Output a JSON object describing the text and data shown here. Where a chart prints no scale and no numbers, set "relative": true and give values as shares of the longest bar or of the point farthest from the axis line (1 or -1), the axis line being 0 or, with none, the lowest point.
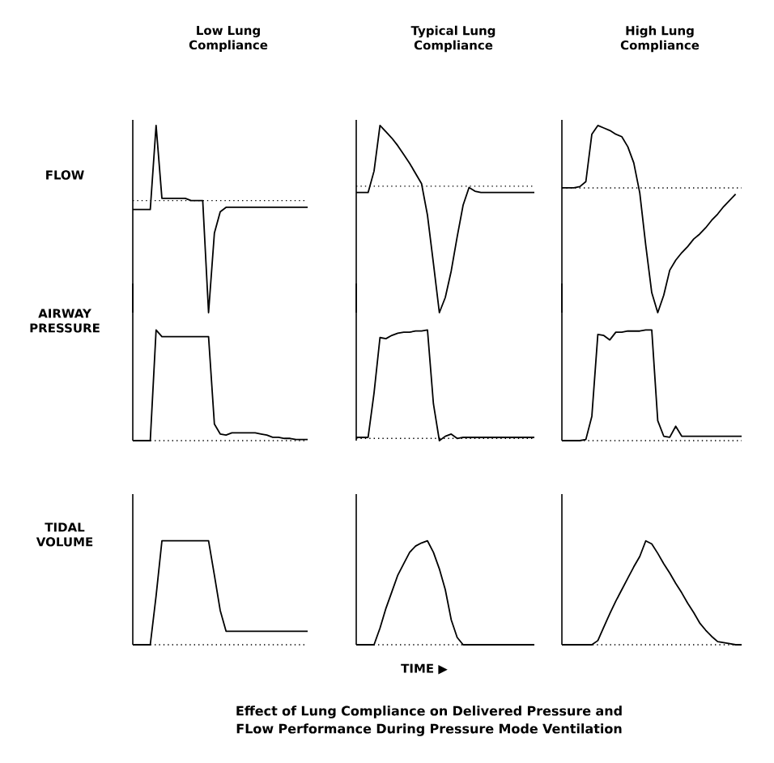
{
  "chart_data": [
    {
      "type": "line",
      "relative": true,
      "title": "Low Lung Compliance",
      "ylabel": "FLOW",
      "ref_lines": [
        {
          "axis": "y",
          "value": 0,
          "line_style": "dotted"
        }
      ],
      "categories": [
        null,
        null,
        null,
        null,
        null,
        null,
        null,
        null,
        null,
        null,
        null,
        null,
        null,
        null,
        null,
        null,
        null,
        null,
        null,
        null,
        null,
        null,
        null,
        null,
        null,
        null,
        null,
        null,
        null,
        null,
        null
      ],
      "series": [
        {
          "color": "#000000",
          "values": [
            -0.08,
            -0.08,
            -0.08,
            -0.08,
            0.67,
            0.02,
            0.02,
            0.02,
            0.02,
            0.02,
            0,
            0,
            0,
            -1,
            -0.29,
            -0.1,
            -0.06,
            -0.06,
            -0.06,
            -0.06,
            -0.06,
            -0.06,
            -0.06,
            -0.06,
            -0.06,
            -0.06,
            -0.06,
            -0.06,
            -0.06,
            -0.06,
            -0.06
          ]
        }
      ]
    },
    {
      "type": "line",
      "relative": true,
      "title": "Typical Lung Compliance",
      "ref_lines": [
        {
          "axis": "y",
          "value": 0,
          "line_style": "dotted"
        }
      ],
      "categories": [
        null,
        null,
        null,
        null,
        null,
        null,
        null,
        null,
        null,
        null,
        null,
        null,
        null,
        null,
        null,
        null,
        null,
        null,
        null,
        null,
        null,
        null,
        null,
        null,
        null,
        null,
        null,
        null,
        null,
        null,
        null
      ],
      "series": [
        {
          "color": "#000000",
          "values": [
            -0.05,
            -0.05,
            -0.05,
            0.12,
            0.48,
            0.43,
            0.38,
            0.32,
            0.25,
            0.18,
            0.1,
            0.02,
            -0.23,
            -0.61,
            -1,
            -0.88,
            -0.67,
            -0.4,
            -0.15,
            -0.01,
            -0.04,
            -0.05,
            -0.05,
            -0.05,
            -0.05,
            -0.05,
            -0.05,
            -0.05,
            -0.05,
            -0.05,
            -0.05
          ]
        }
      ]
    },
    {
      "type": "line",
      "relative": true,
      "title": "High Lung Compliance",
      "ref_lines": [
        {
          "axis": "y",
          "value": 0,
          "line_style": "dotted"
        }
      ],
      "categories": [
        null,
        null,
        null,
        null,
        null,
        null,
        null,
        null,
        null,
        null,
        null,
        null,
        null,
        null,
        null,
        null,
        null,
        null,
        null,
        null,
        null,
        null,
        null,
        null,
        null,
        null,
        null,
        null,
        null,
        null,
        null
      ],
      "series": [
        {
          "color": "#000000",
          "values": [
            0,
            0,
            0,
            0.01,
            0.05,
            0.43,
            0.5,
            0.48,
            0.46,
            0.43,
            0.41,
            0.33,
            0.2,
            -0.04,
            -0.46,
            -0.84,
            -1,
            -0.86,
            -0.66,
            -0.58,
            -0.52,
            -0.47,
            -0.41,
            -0.37,
            -0.32,
            -0.26,
            -0.21,
            -0.15,
            -0.1,
            -0.05,
            null
          ]
        }
      ]
    },
    {
      "type": "line",
      "relative": true,
      "ylabel": "AIRWAY PRESSURE",
      "categories": [
        null,
        null,
        null,
        null,
        null,
        null,
        null,
        null,
        null,
        null,
        null,
        null,
        null,
        null,
        null,
        null,
        null,
        null,
        null,
        null,
        null,
        null,
        null,
        null,
        null,
        null,
        null,
        null,
        null,
        null,
        null
      ],
      "series": [
        {
          "color": "#000000",
          "values": [
            0,
            0,
            0,
            0,
            1,
            0.94,
            0.94,
            0.94,
            0.94,
            0.94,
            0.94,
            0.94,
            0.94,
            0.94,
            0.15,
            0.06,
            0.05,
            0.07,
            0.07,
            0.07,
            0.07,
            0.07,
            0.06,
            0.05,
            0.03,
            0.03,
            0.02,
            0.02,
            0.01,
            0.01,
            0.01
          ]
        }
      ]
    },
    {
      "type": "line",
      "relative": true,
      "categories": [
        null,
        null,
        null,
        null,
        null,
        null,
        null,
        null,
        null,
        null,
        null,
        null,
        null,
        null,
        null,
        null,
        null,
        null,
        null,
        null,
        null,
        null,
        null,
        null,
        null,
        null,
        null,
        null,
        null,
        null,
        null
      ],
      "series": [
        {
          "color": "#000000",
          "values": [
            0.01,
            0.01,
            0.01,
            0.42,
            0.93,
            0.92,
            0.95,
            0.97,
            0.98,
            0.98,
            0.99,
            0.99,
            1,
            0.32,
            -0.02,
            0.02,
            0.04,
            0,
            0.01,
            0.01,
            0.01,
            0.01,
            0.01,
            0.01,
            0.01,
            0.01,
            0.01,
            0.01,
            0.01,
            0.01,
            0.01
          ]
        }
      ]
    },
    {
      "type": "line",
      "relative": true,
      "categories": [
        null,
        null,
        null,
        null,
        null,
        null,
        null,
        null,
        null,
        null,
        null,
        null,
        null,
        null,
        null,
        null,
        null,
        null,
        null,
        null,
        null,
        null,
        null,
        null,
        null,
        null,
        null,
        null,
        null,
        null,
        null
      ],
      "series": [
        {
          "color": "#000000",
          "values": [
            0,
            0,
            0,
            0,
            0.01,
            0.22,
            0.96,
            0.95,
            0.91,
            0.98,
            0.98,
            0.99,
            0.99,
            0.99,
            1,
            1,
            0.18,
            0.04,
            0.03,
            0.13,
            0.04,
            0.04,
            0.04,
            0.04,
            0.04,
            0.04,
            0.04,
            0.04,
            0.04,
            0.04,
            0.04
          ]
        }
      ]
    },
    {
      "type": "line",
      "relative": true,
      "ylabel": "TIDAL VOLUME",
      "categories": [
        null,
        null,
        null,
        null,
        null,
        null,
        null,
        null,
        null,
        null,
        null,
        null,
        null,
        null,
        null,
        null,
        null,
        null,
        null,
        null,
        null,
        null,
        null,
        null,
        null,
        null,
        null,
        null,
        null,
        null,
        null
      ],
      "series": [
        {
          "color": "#000000",
          "values": [
            0,
            0,
            0,
            0,
            0.47,
            1,
            1,
            1,
            1,
            1,
            1,
            1,
            1,
            1,
            0.67,
            0.33,
            0.13,
            0.13,
            0.13,
            0.13,
            0.13,
            0.13,
            0.13,
            0.13,
            0.13,
            0.13,
            0.13,
            0.13,
            0.13,
            0.13,
            0.13
          ]
        }
      ]
    },
    {
      "type": "line",
      "relative": true,
      "xlabel": "TIME ▶",
      "annotations": [
        "Effect of Lung Compliance on Delivered Pressure and FLow Performance During Pressure Mode Ventilation"
      ],
      "categories": [
        null,
        null,
        null,
        null,
        null,
        null,
        null,
        null,
        null,
        null,
        null,
        null,
        null,
        null,
        null,
        null,
        null,
        null,
        null,
        null,
        null,
        null,
        null,
        null,
        null,
        null,
        null,
        null,
        null,
        null,
        null
      ],
      "series": [
        {
          "color": "#000000",
          "values": [
            0,
            0,
            0,
            0,
            0.16,
            0.35,
            0.51,
            0.67,
            0.78,
            0.89,
            0.95,
            0.98,
            1,
            0.89,
            0.73,
            0.53,
            0.24,
            0.07,
            0,
            0,
            0,
            0,
            0,
            0,
            0,
            0,
            0,
            0,
            0,
            0,
            0
          ]
        }
      ]
    },
    {
      "type": "line",
      "relative": true,
      "categories": [
        null,
        null,
        null,
        null,
        null,
        null,
        null,
        null,
        null,
        null,
        null,
        null,
        null,
        null,
        null,
        null,
        null,
        null,
        null,
        null,
        null,
        null,
        null,
        null,
        null,
        null,
        null,
        null,
        null,
        null,
        null
      ],
      "series": [
        {
          "color": "#000000",
          "values": [
            0,
            0,
            0,
            0,
            0,
            0,
            0.04,
            0.17,
            0.3,
            0.42,
            0.53,
            0.64,
            0.75,
            0.85,
            1,
            0.97,
            0.88,
            0.78,
            0.69,
            0.59,
            0.5,
            0.4,
            0.31,
            0.21,
            0.14,
            0.08,
            0.03,
            0.02,
            0.01,
            0,
            0
          ]
        }
      ]
    }
  ]
}
